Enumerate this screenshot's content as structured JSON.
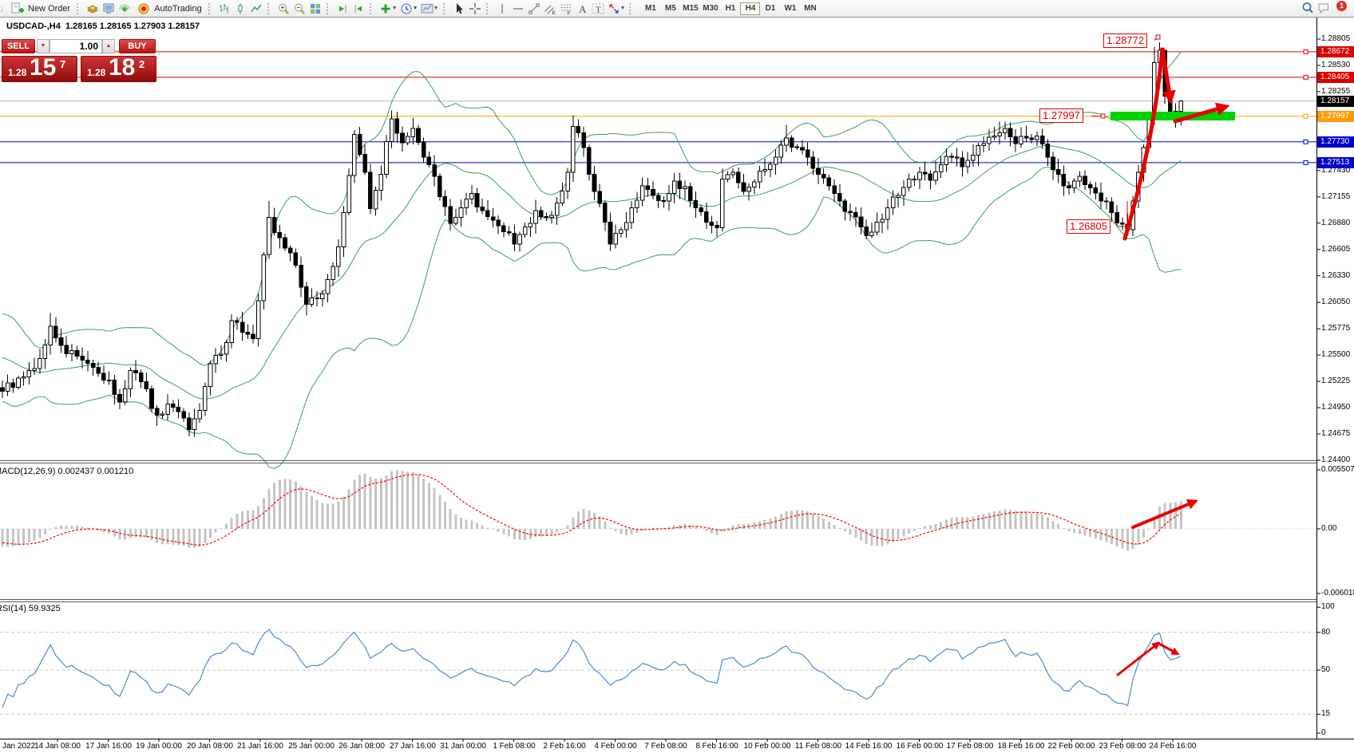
{
  "toolbar": {
    "new_order_label": "New Order",
    "autotrading_label": "AutoTrading",
    "timeframes": [
      "M1",
      "M5",
      "M15",
      "M30",
      "H1",
      "H4",
      "D1",
      "W1",
      "MN"
    ],
    "active_timeframe": "H4",
    "notification_badge": "1"
  },
  "chart_header": "USDCAD-,H4  1.28165 1.28165 1.27903 1.28157",
  "order_panel": {
    "sell_label": "SELL",
    "buy_label": "BUY",
    "volume": "1.00",
    "sell_price": {
      "prefix": "1.28",
      "big": "15",
      "sup": "7"
    },
    "buy_price": {
      "prefix": "1.28",
      "big": "18",
      "sup": "2"
    }
  },
  "annotations": {
    "swing_high": "1.28772",
    "zone": "1.27997",
    "swing_low": "1.26805"
  },
  "price_axis": {
    "ticks": [
      "1.28805",
      "1.28530",
      "1.28255",
      "1.27980",
      "1.27705",
      "1.27430",
      "1.27155",
      "1.26880",
      "1.26605",
      "1.26330",
      "1.26050",
      "1.25775",
      "1.25500",
      "1.25225",
      "1.24950",
      "1.24675",
      "1.24400"
    ],
    "badges": [
      {
        "text": "1.28672",
        "bg": "#dd0000"
      },
      {
        "text": "1.28405",
        "bg": "#dd0000"
      },
      {
        "text": "1.28157",
        "bg": "#000000"
      },
      {
        "text": "1.27997",
        "bg": "#ff9c00"
      },
      {
        "text": "1.27730",
        "bg": "#0000cc"
      },
      {
        "text": "1.27513",
        "bg": "#0000cc"
      }
    ]
  },
  "time_axis": {
    "labels": [
      "Jan 2022",
      "14 Jan 08:00",
      "17 Jan 16:00",
      "19 Jan 00:00",
      "20 Jan 08:00",
      "21 Jan 16:00",
      "25 Jan 00:00",
      "26 Jan 08:00",
      "27 Jan 16:00",
      "31 Jan 00:00",
      "1 Feb 08:00",
      "2 Feb 16:00",
      "4 Feb 00:00",
      "7 Feb 08:00",
      "8 Feb 16:00",
      "10 Feb 00:00",
      "11 Feb 08:00",
      "14 Feb 16:00",
      "16 Feb 00:00",
      "17 Feb 08:00",
      "18 Feb 16:00",
      "22 Feb 00:00",
      "23 Feb 08:00",
      "24 Feb 16:00"
    ]
  },
  "macd_panel": {
    "label": "MACD(12,26,9) 0.002437 0.001210",
    "axis_max": "0.005507",
    "axis_zero": "0.00",
    "axis_min": "-0.006018"
  },
  "rsi_panel": {
    "label": "RSI(14) 59.9325",
    "axis": [
      "100",
      "80",
      "50",
      "15",
      "0"
    ]
  },
  "chart_data": {
    "type": "candlestick",
    "symbol": "USDCAD-",
    "period": "H4",
    "last_bar": {
      "open": 1.28165,
      "high": 1.28165,
      "low": 1.27903,
      "close": 1.28157
    },
    "bid": 1.28157,
    "ask": 1.28182,
    "price_range": {
      "min": 1.244,
      "max": 1.28805
    },
    "key_levels": {
      "resistance": [
        1.28672,
        1.28405
      ],
      "support": [
        1.2773,
        1.27513
      ],
      "orange_zone": 1.27997,
      "swing_high": 1.28772,
      "swing_low": 1.26805,
      "current": 1.28157
    },
    "indicators": {
      "bollinger": {
        "period": 20,
        "deviation": 2
      },
      "macd": {
        "fast": 12,
        "slow": 26,
        "signal": 9,
        "value": 0.002437,
        "signal_value": 0.00121,
        "scale_max": 0.005507,
        "scale_min": -0.006018
      },
      "rsi": {
        "period": 14,
        "value": 59.9325,
        "levels": [
          80,
          50,
          15
        ]
      }
    },
    "pre_path": [
      [
        -26,
        1.2574
      ],
      [
        -21,
        1.2561
      ],
      [
        -16,
        1.2583
      ],
      [
        -11,
        1.2549
      ],
      [
        -6,
        1.2533
      ],
      [
        -1,
        1.2516
      ]
    ],
    "price_path": [
      [
        0,
        1.2512
      ],
      [
        3,
        1.2526
      ],
      [
        6,
        1.2536
      ],
      [
        9,
        1.258
      ],
      [
        11,
        1.256
      ],
      [
        14,
        1.2549
      ],
      [
        17,
        1.2537
      ],
      [
        20,
        1.2524
      ],
      [
        22,
        1.2501
      ],
      [
        24,
        1.2534
      ],
      [
        26,
        1.2522
      ],
      [
        29,
        1.2487
      ],
      [
        31,
        1.2499
      ],
      [
        33,
        1.2491
      ],
      [
        35,
        1.2472
      ],
      [
        37,
        1.2492
      ],
      [
        39,
        1.2541
      ],
      [
        41,
        1.2551
      ],
      [
        43,
        1.2586
      ],
      [
        45,
        1.2574
      ],
      [
        47,
        1.2567
      ],
      [
        48,
        1.2607
      ],
      [
        49,
        1.2655
      ],
      [
        50,
        1.2694
      ],
      [
        51,
        1.2678
      ],
      [
        53,
        1.2662
      ],
      [
        55,
        1.2644
      ],
      [
        57,
        1.2603
      ],
      [
        59,
        1.2609
      ],
      [
        61,
        1.2629
      ],
      [
        63,
        1.2663
      ],
      [
        65,
        1.2738
      ],
      [
        66,
        1.2781
      ],
      [
        67,
        1.276
      ],
      [
        68,
        1.2741
      ],
      [
        69,
        1.2703
      ],
      [
        71,
        1.2739
      ],
      [
        73,
        1.2797
      ],
      [
        75,
        1.2772
      ],
      [
        77,
        1.2787
      ],
      [
        79,
        1.2757
      ],
      [
        81,
        1.2737
      ],
      [
        84,
        1.2688
      ],
      [
        86,
        1.2704
      ],
      [
        88,
        1.2719
      ],
      [
        90,
        1.2701
      ],
      [
        92,
        1.2691
      ],
      [
        94,
        1.2679
      ],
      [
        96,
        1.2666
      ],
      [
        98,
        1.2684
      ],
      [
        100,
        1.2701
      ],
      [
        102,
        1.2694
      ],
      [
        104,
        1.2709
      ],
      [
        106,
        1.2741
      ],
      [
        107,
        1.2789
      ],
      [
        109,
        1.2767
      ],
      [
        111,
        1.2721
      ],
      [
        113,
        1.2689
      ],
      [
        114,
        1.2666
      ],
      [
        116,
        1.2681
      ],
      [
        118,
        1.2704
      ],
      [
        120,
        1.2727
      ],
      [
        122,
        1.2717
      ],
      [
        124,
        1.2711
      ],
      [
        126,
        1.2732
      ],
      [
        128,
        1.2726
      ],
      [
        130,
        1.2704
      ],
      [
        132,
        1.2689
      ],
      [
        134,
        1.2683
      ],
      [
        135,
        1.2734
      ],
      [
        137,
        1.2741
      ],
      [
        139,
        1.2721
      ],
      [
        141,
        1.2731
      ],
      [
        143,
        1.2744
      ],
      [
        145,
        1.2757
      ],
      [
        147,
        1.2777
      ],
      [
        149,
        1.2767
      ],
      [
        151,
        1.2757
      ],
      [
        153,
        1.2739
      ],
      [
        155,
        1.2727
      ],
      [
        157,
        1.2711
      ],
      [
        159,
        1.2699
      ],
      [
        161,
        1.2684
      ],
      [
        162,
        1.2675
      ],
      [
        164,
        1.2689
      ],
      [
        166,
        1.2704
      ],
      [
        168,
        1.2717
      ],
      [
        170,
        1.2734
      ],
      [
        172,
        1.2741
      ],
      [
        174,
        1.2733
      ],
      [
        176,
        1.2749
      ],
      [
        178,
        1.2757
      ],
      [
        180,
        1.2747
      ],
      [
        182,
        1.2759
      ],
      [
        184,
        1.2771
      ],
      [
        186,
        1.2779
      ],
      [
        188,
        1.2787
      ],
      [
        190,
        1.2771
      ],
      [
        192,
        1.2777
      ],
      [
        194,
        1.2779
      ],
      [
        196,
        1.2757
      ],
      [
        198,
        1.2739
      ],
      [
        200,
        1.2725
      ],
      [
        202,
        1.2737
      ],
      [
        204,
        1.2725
      ],
      [
        206,
        1.2711
      ],
      [
        208,
        1.2699
      ],
      [
        210,
        1.2687
      ],
      [
        211,
        1.2681
      ],
      [
        212,
        1.2711
      ],
      [
        213,
        1.2741
      ],
      [
        214,
        1.2767
      ],
      [
        215,
        1.2799
      ],
      [
        216,
        1.2856
      ],
      [
        217,
        1.2869
      ],
      [
        218,
        1.2821
      ],
      [
        219,
        1.2799
      ],
      [
        220,
        1.2805
      ],
      [
        221,
        1.28157
      ]
    ],
    "wick_overrides": {
      "9": {
        "h": 1.2594
      },
      "35": {
        "l": 1.2465
      },
      "50": {
        "h": 1.2711
      },
      "73": {
        "h": 1.2806
      },
      "107": {
        "h": 1.2801
      },
      "114": {
        "l": 1.2659
      },
      "147": {
        "h": 1.2791
      },
      "162": {
        "l": 1.2671
      },
      "211": {
        "l": 1.26805
      },
      "216": {
        "h": 1.2872
      },
      "217": {
        "h": 1.28772
      },
      "218": {
        "h": 1.2868
      },
      "221": {
        "h": 1.28165,
        "l": 1.27903
      }
    }
  }
}
